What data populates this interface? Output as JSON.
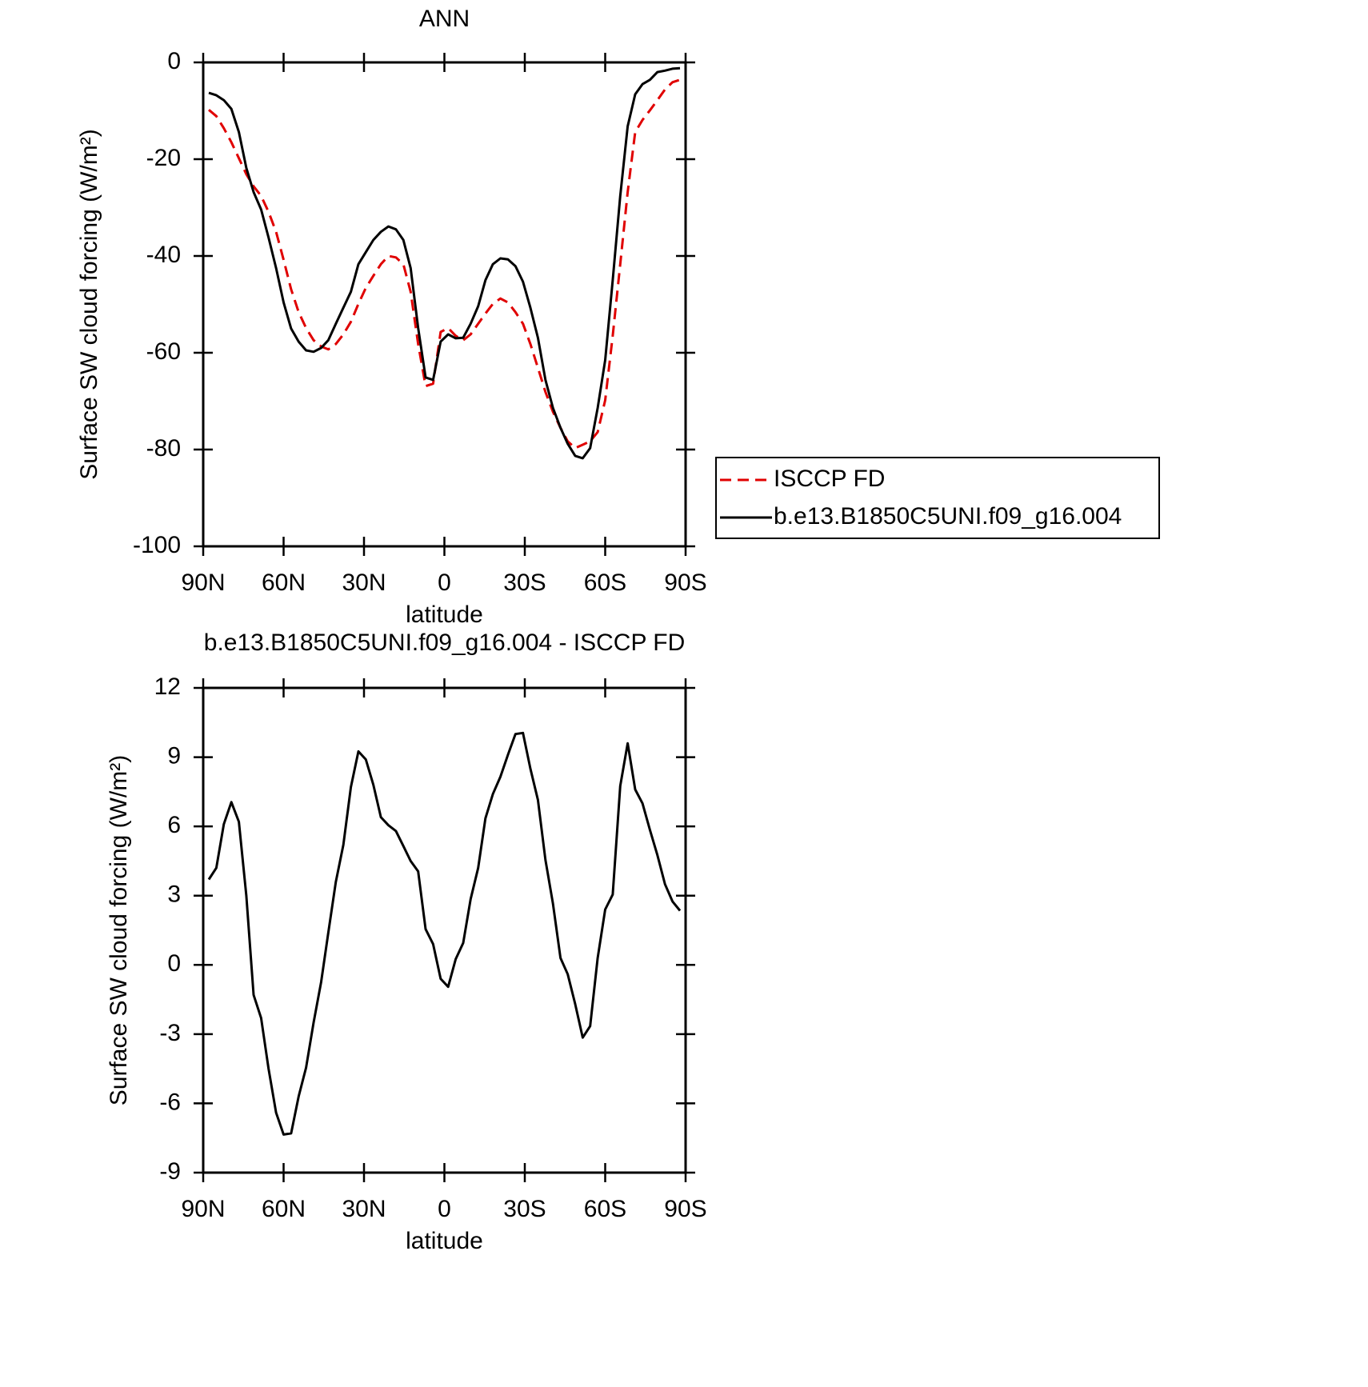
{
  "chart_data": [
    {
      "type": "line",
      "title": "ANN",
      "xlabel": "latitude",
      "ylabel": "Surface SW cloud forcing (W/m²)",
      "xlim": [
        90,
        -90
      ],
      "xticks": [
        {
          "value": 90,
          "label": "90N"
        },
        {
          "value": 60,
          "label": "60N"
        },
        {
          "value": 30,
          "label": "30N"
        },
        0,
        {
          "value": -30,
          "label": "30S"
        },
        {
          "value": -60,
          "label": "60S"
        },
        {
          "value": -90,
          "label": "90S"
        }
      ],
      "ylim": [
        -100,
        0
      ],
      "yticks": [
        -100,
        -80,
        -60,
        -40,
        -20,
        0
      ],
      "legend": "right",
      "x": [
        87.9,
        85.1,
        82.3,
        79.5,
        76.7,
        73.9,
        71.2,
        68.4,
        65.6,
        62.8,
        60.0,
        57.2,
        54.4,
        51.6,
        48.8,
        46.0,
        43.3,
        40.5,
        37.7,
        34.9,
        32.1,
        29.3,
        26.5,
        23.7,
        20.9,
        18.1,
        15.3,
        12.6,
        9.8,
        7.0,
        4.2,
        1.4,
        -1.4,
        -4.2,
        -7.0,
        -9.8,
        -12.6,
        -15.3,
        -18.1,
        -20.9,
        -23.7,
        -26.5,
        -29.3,
        -32.1,
        -34.9,
        -37.7,
        -40.5,
        -43.3,
        -46.0,
        -48.8,
        -51.6,
        -54.4,
        -57.2,
        -60.0,
        -62.8,
        -65.6,
        -68.4,
        -71.2,
        -73.9,
        -76.7,
        -79.5,
        -82.3,
        -85.1,
        -87.9
      ],
      "series": [
        {
          "name": "ISCCP FD",
          "color": "#e00000",
          "line_style": "dashed",
          "values": [
            -9.8,
            -11.1,
            -13.6,
            -16.5,
            -19.8,
            -23.1,
            -25.6,
            -27.6,
            -30.9,
            -35.0,
            -40.8,
            -46.9,
            -51.6,
            -54.9,
            -57.4,
            -58.7,
            -59.3,
            -58.2,
            -56.2,
            -53.6,
            -49.9,
            -46.6,
            -44.1,
            -41.7,
            -40.0,
            -40.3,
            -41.7,
            -47.4,
            -58.2,
            -66.9,
            -66.4,
            -55.7,
            -54.9,
            -56.5,
            -57.4,
            -56.2,
            -54.0,
            -51.9,
            -49.9,
            -48.8,
            -49.6,
            -51.6,
            -54.0,
            -58.2,
            -63.1,
            -68.1,
            -72.2,
            -75.5,
            -78.3,
            -79.7,
            -79.0,
            -78.3,
            -76.4,
            -69.8,
            -56.5,
            -41.7,
            -26.8,
            -14.4,
            -11.9,
            -9.9,
            -7.8,
            -5.6,
            -4.1,
            -3.6
          ]
        },
        {
          "name": "b.e13.B1850C5UNI.f09_g16.004",
          "color": "#000000",
          "line_style": "solid",
          "values": [
            -6.3,
            -6.8,
            -7.8,
            -9.6,
            -14.4,
            -21.8,
            -26.8,
            -30.4,
            -36.2,
            -42.5,
            -49.6,
            -55.0,
            -57.7,
            -59.5,
            -59.8,
            -59.0,
            -57.4,
            -54.0,
            -50.7,
            -47.4,
            -41.7,
            -39.2,
            -36.7,
            -35.0,
            -33.9,
            -34.5,
            -36.7,
            -42.5,
            -54.9,
            -65.1,
            -65.6,
            -57.7,
            -56.2,
            -57.0,
            -56.9,
            -54.0,
            -50.4,
            -45.0,
            -41.7,
            -40.5,
            -40.7,
            -42.1,
            -45.3,
            -50.7,
            -56.9,
            -65.6,
            -71.4,
            -75.5,
            -78.8,
            -81.3,
            -81.8,
            -79.7,
            -71.4,
            -61.5,
            -45.0,
            -27.6,
            -13.2,
            -6.6,
            -4.5,
            -3.6,
            -2.0,
            -1.7,
            -1.3,
            -1.2
          ]
        }
      ]
    },
    {
      "type": "line",
      "title": "b.e13.B1850C5UNI.f09_g16.004 - ISCCP FD",
      "xlabel": "latitude",
      "ylabel": "Surface SW cloud forcing (W/m²)",
      "xlim": [
        90,
        -90
      ],
      "xticks": [
        {
          "value": 90,
          "label": "90N"
        },
        {
          "value": 60,
          "label": "60N"
        },
        {
          "value": 30,
          "label": "30N"
        },
        0,
        {
          "value": -30,
          "label": "30S"
        },
        {
          "value": -60,
          "label": "60S"
        },
        {
          "value": -90,
          "label": "90S"
        }
      ],
      "ylim": [
        -9,
        12
      ],
      "yticks": [
        -9,
        -6,
        -3,
        0,
        3,
        6,
        9,
        12
      ],
      "x": [
        87.9,
        85.1,
        82.3,
        79.5,
        76.7,
        73.9,
        71.2,
        68.4,
        65.6,
        62.8,
        60.0,
        57.2,
        54.4,
        51.6,
        48.8,
        46.0,
        43.3,
        40.5,
        37.7,
        34.9,
        32.1,
        29.3,
        26.5,
        23.7,
        20.9,
        18.1,
        15.3,
        12.6,
        9.8,
        7.0,
        4.2,
        1.4,
        -1.4,
        -4.2,
        -7.0,
        -9.8,
        -12.6,
        -15.3,
        -18.1,
        -20.9,
        -23.7,
        -26.5,
        -29.3,
        -32.1,
        -34.9,
        -37.7,
        -40.5,
        -43.3,
        -46.0,
        -48.8,
        -51.6,
        -54.4,
        -57.2,
        -60.0,
        -62.8,
        -65.6,
        -68.4,
        -71.2,
        -73.9,
        -76.7,
        -79.5,
        -82.3,
        -85.1,
        -87.9
      ],
      "series": [
        {
          "color": "#000000",
          "line_style": "solid",
          "values": [
            3.7,
            4.2,
            6.1,
            7.05,
            6.2,
            3.0,
            -1.3,
            -2.3,
            -4.5,
            -6.4,
            -7.35,
            -7.3,
            -5.7,
            -4.45,
            -2.5,
            -0.75,
            1.4,
            3.6,
            5.2,
            7.7,
            9.25,
            8.9,
            7.8,
            6.4,
            6.05,
            5.8,
            5.15,
            4.5,
            4.05,
            1.55,
            0.9,
            -0.6,
            -0.95,
            0.25,
            0.95,
            2.85,
            4.2,
            6.35,
            7.4,
            8.15,
            9.1,
            10.0,
            10.05,
            8.5,
            7.15,
            4.55,
            2.65,
            0.3,
            -0.4,
            -1.7,
            -3.15,
            -2.65,
            0.3,
            2.4,
            3.05,
            7.75,
            9.6,
            7.6,
            7.0,
            5.85,
            4.75,
            3.5,
            2.75,
            2.35
          ]
        }
      ]
    }
  ]
}
